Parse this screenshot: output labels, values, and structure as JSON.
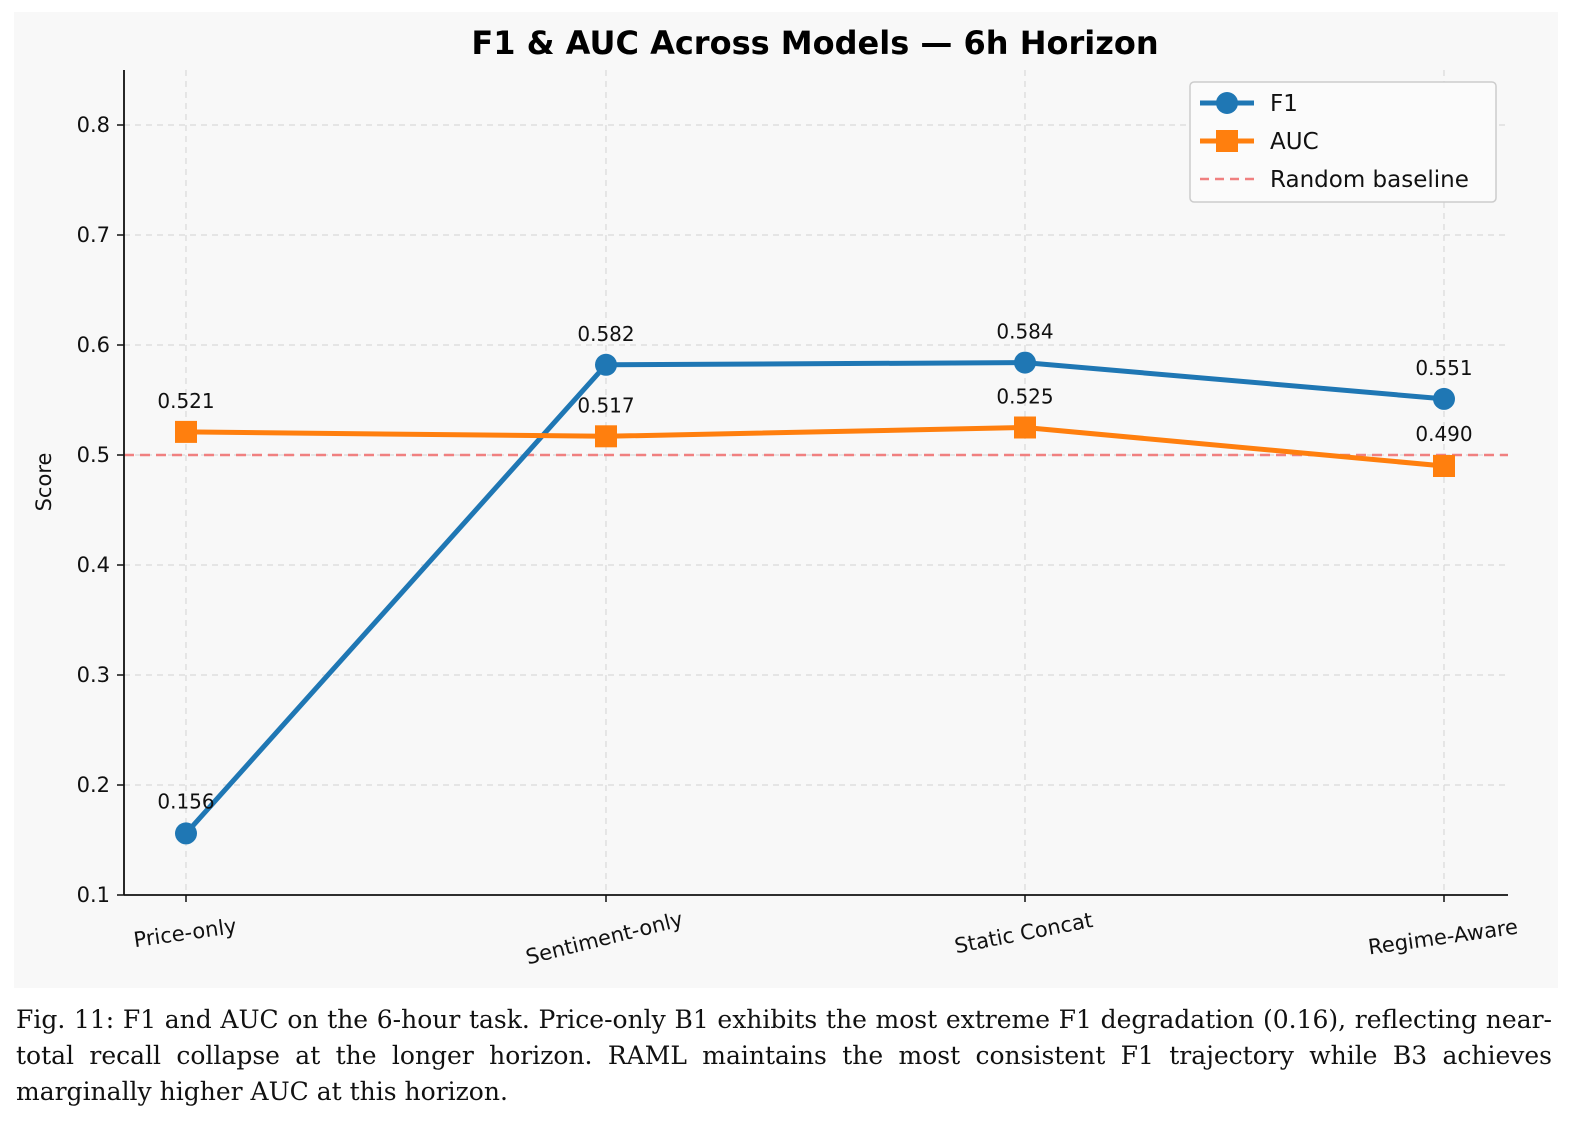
{
  "chart_data": {
    "type": "line",
    "title": "F1 & AUC Across Models — 6h Horizon",
    "xlabel": "",
    "ylabel": "Score",
    "categories": [
      "Price-only",
      "Sentiment-only",
      "Static Concat",
      "Regime-Aware"
    ],
    "ylim": [
      0.1,
      0.85
    ],
    "yticks": [
      "0.1",
      "0.2",
      "0.3",
      "0.4",
      "0.5",
      "0.6",
      "0.7",
      "0.8"
    ],
    "grid": true,
    "legend_position": "top-right",
    "series": [
      {
        "name": "F1",
        "values": [
          0.156,
          0.582,
          0.584,
          0.551
        ],
        "labels": [
          "0.156",
          "0.582",
          "0.584",
          "0.551"
        ],
        "color": "#1f77b4",
        "marker": "circle"
      },
      {
        "name": "AUC",
        "values": [
          0.521,
          0.517,
          0.525,
          0.49
        ],
        "labels": [
          "0.521",
          "0.517",
          "0.525",
          "0.490"
        ],
        "color": "#ff7f0e",
        "marker": "square"
      }
    ],
    "reference_line": {
      "name": "Random baseline",
      "value": 0.5,
      "color": "#f08080",
      "style": "dashed"
    }
  },
  "caption": "Fig. 11: F1 and AUC on the 6-hour task. Price-only B1 exhibits the most extreme F1 degradation (0.16), reflecting near-total recall collapse at the longer horizon. RAML maintains the most consistent F1 trajectory while B3 achieves marginally higher AUC at this horizon."
}
